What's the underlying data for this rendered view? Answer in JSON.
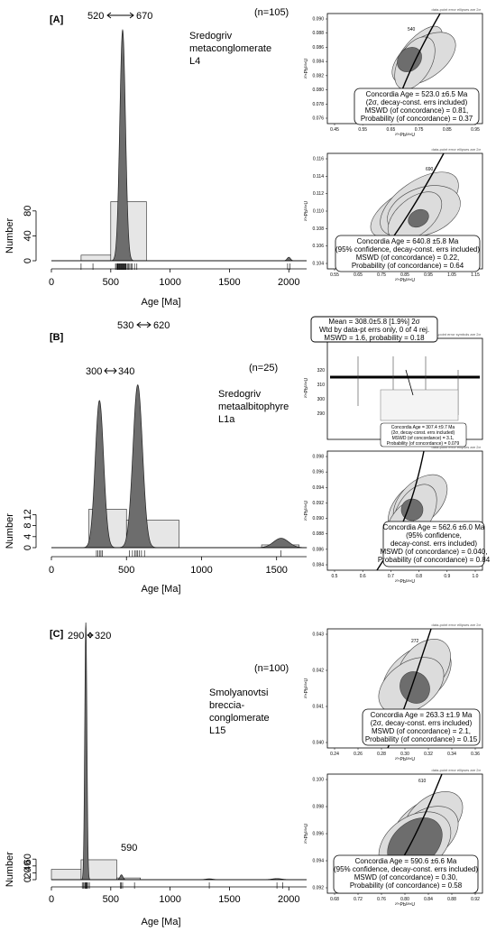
{
  "panels": [
    {
      "label": "[A]",
      "n_text": "(n=105)",
      "sample": [
        "Sredogriv",
        "metaconglomerate",
        "L4"
      ],
      "peak_range": [
        "520",
        "670"
      ],
      "ylabel": "Number",
      "xlabel": "Age [Ma]",
      "xticks": [
        "0",
        "500",
        "1000",
        "1500",
        "2000"
      ],
      "yticks": [
        "0",
        "40",
        "80"
      ],
      "concordia_top": {
        "spot": "540",
        "x_ticks": [
          "0.45",
          "0.55",
          "0.65",
          "0.75",
          "0.85",
          "0.95"
        ],
        "y_ticks": [
          "0.076",
          "0.078",
          "0.080",
          "0.082",
          "0.084",
          "0.086",
          "0.088",
          "0.090"
        ],
        "lines": [
          "Concordia Age = 523.0 ±6.5 Ma",
          "(2σ, decay-const. errs included)",
          "MSWD (of concordance) = 0.81,",
          "Probability (of concordance) = 0.37"
        ]
      },
      "concordia_bottom": {
        "spot": "690",
        "x_ticks": [
          "0.55",
          "0.65",
          "0.75",
          "0.85",
          "0.95",
          "1.05",
          "1.15"
        ],
        "y_ticks": [
          "0.104",
          "0.106",
          "0.108",
          "0.110",
          "0.112",
          "0.114",
          "0.116"
        ],
        "lines": [
          "Concordia Age = 640.8 ±5.8 Ma",
          "(95% confidence, decay-const. errs included)",
          "MSWD (of concordance) = 0.22,",
          "Probability (of concordance) = 0.64"
        ]
      }
    },
    {
      "label": "[B]",
      "n_text": "(n=25)",
      "sample": [
        "Sredogriv",
        "metaalbitophyre",
        "L1a"
      ],
      "peak_range": [
        "530",
        "620"
      ],
      "peak_range2": [
        "300",
        "340"
      ],
      "ylabel": "Number",
      "xlabel": "Age [Ma]",
      "xticks": [
        "0",
        "500",
        "1000",
        "1500"
      ],
      "yticks": [
        "0",
        "4",
        "8",
        "12"
      ],
      "mean_box": [
        "Mean = 308.0±5.8  [1.9%]  2σ",
        "Wtd by data-pt errs only, 0 of 4 rej.",
        "MSWD = 1.6, probability = 0.18"
      ],
      "mean_yticks": [
        "290",
        "300",
        "310",
        "320"
      ],
      "concordia_inset": [
        "Concordia Age = 307.4 ±9.7 Ma",
        "(2σ, decay-const. errs included)",
        "MSWD (of concordance) = 3.1,",
        "Probability (of concordance) = 0.079"
      ],
      "concordia_bottom": {
        "x_ticks": [
          "0.5",
          "0.6",
          "0.7",
          "0.8",
          "0.9",
          "1.0"
        ],
        "y_ticks": [
          "0.084",
          "0.086",
          "0.088",
          "0.090",
          "0.092",
          "0.094",
          "0.096",
          "0.098"
        ],
        "lines": [
          "Concordia Age = 562.6 ±6.0 Ma",
          "(95% confidence,",
          "decay-const. errs included)",
          "MSWD (of concordance) = 0.040,",
          "Probability (of concordance) = 0.84"
        ]
      }
    },
    {
      "label": "[C]",
      "n_text": "(n=100)",
      "sample": [
        "Smolyanovtsi",
        "breccia-",
        "conglomerate",
        "L15"
      ],
      "peak_range": [
        "290",
        "320"
      ],
      "peak_label2": "590",
      "ylabel": "Number",
      "xlabel": "Age [Ma]",
      "xticks": [
        "0",
        "500",
        "1000",
        "1500",
        "2000"
      ],
      "yticks": [
        "0",
        "20",
        "40",
        "60"
      ],
      "concordia_top": {
        "spot": "272",
        "x_ticks": [
          "0.24",
          "0.26",
          "0.28",
          "0.30",
          "0.32",
          "0.34",
          "0.36"
        ],
        "y_ticks": [
          "0.040",
          "0.041",
          "0.042",
          "0.043"
        ],
        "lines": [
          "Concordia Age = 263.3 ±1.9 Ma",
          "(2σ, decay-const. errs included)",
          "MSWD (of concordance) = 2.1,",
          "Probability (of concordance) = 0.15"
        ]
      },
      "concordia_bottom": {
        "spot": "610",
        "x_ticks": [
          "0.68",
          "0.72",
          "0.76",
          "0.80",
          "0.84",
          "0.88",
          "0.92"
        ],
        "y_ticks": [
          "0.092",
          "0.094",
          "0.096",
          "0.098",
          "0.100"
        ],
        "lines": [
          "Concordia Age = 590.6 ±6.6 Ma",
          "(95% confidence, decay-const. errs included)",
          "MSWD (of concordance) = 0.30,",
          "Probability (of concordance) = 0.58"
        ]
      }
    }
  ],
  "small_header": "data-point error ellipses are 2σ",
  "chart_data": [
    {
      "type": "area",
      "title": "",
      "xlabel": "Age [Ma]",
      "ylabel": "Number",
      "xlim": [
        0,
        2150
      ],
      "ylim": [
        0,
        100
      ],
      "histogram": {
        "bin_edges": [
          250,
          500,
          800
        ],
        "counts": [
          9,
          95
        ]
      },
      "kde_peaks": [
        {
          "age": 600,
          "height": 330
        },
        {
          "age": 2000,
          "height": 5
        }
      ]
    },
    {
      "type": "area",
      "xlabel": "Age [Ma]",
      "ylabel": "Number",
      "xlim": [
        0,
        1700
      ],
      "ylim": [
        0,
        13
      ],
      "histogram": {
        "bin_edges": [
          250,
          500,
          850,
          1400,
          1650
        ],
        "counts": [
          14,
          10,
          0,
          1
        ]
      },
      "kde_peaks": [
        {
          "age": 320,
          "height": 47
        },
        {
          "age": 575,
          "height": 52
        },
        {
          "age": 1530,
          "height": 3
        }
      ]
    },
    {
      "type": "area",
      "xlabel": "Age [Ma]",
      "ylabel": "Number",
      "xlim": [
        0,
        2150
      ],
      "ylim": [
        0,
        60
      ],
      "histogram": {
        "bin_edges": [
          0,
          250,
          550,
          750
        ],
        "counts": [
          30,
          58,
          5
        ]
      },
      "kde_peaks": [
        {
          "age": 290,
          "height": 950
        },
        {
          "age": 590,
          "height": 18
        },
        {
          "age": 1330,
          "height": 3
        },
        {
          "age": 1900,
          "height": 4
        }
      ]
    }
  ]
}
